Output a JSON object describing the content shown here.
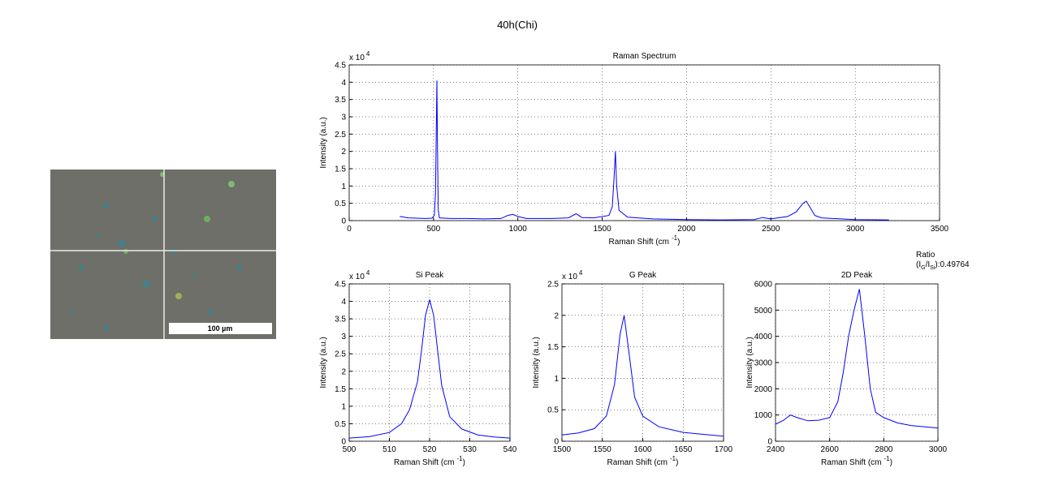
{
  "title": "40h(Chi)",
  "ratio": {
    "label": "Ratio",
    "text": [
      "(I",
      "G",
      "/I",
      "Si",
      "):0.49764"
    ]
  },
  "image": {
    "scale_label": "100 µm"
  },
  "chart_data": [
    {
      "type": "line",
      "title": "Raman Spectrum",
      "xlabel": [
        "Raman Shift (cm",
        "-1",
        ")"
      ],
      "ylabel": "Intensity (a.u.)",
      "y_multiplier": [
        "x 10",
        "4"
      ],
      "grid": true,
      "color": "#0000ff",
      "xlim": [
        0,
        3500
      ],
      "xticks": [
        0,
        500,
        1000,
        1500,
        2000,
        2500,
        3000,
        3500
      ],
      "ylim": [
        0,
        45000
      ],
      "yticks": [
        0,
        {
          "value": 5000,
          "label": "0.5"
        },
        {
          "value": 10000,
          "label": "1"
        },
        {
          "value": 15000,
          "label": "1.5"
        },
        {
          "value": 20000,
          "label": "2"
        },
        {
          "value": 25000,
          "label": "2.5"
        },
        {
          "value": 30000,
          "label": "3"
        },
        {
          "value": 35000,
          "label": "3.5"
        },
        {
          "value": 40000,
          "label": "4"
        },
        {
          "value": 45000,
          "label": "4.5"
        }
      ],
      "x": [
        300,
        350,
        400,
        450,
        490,
        505,
        512,
        516,
        520,
        524,
        528,
        535,
        600,
        700,
        800,
        900,
        940,
        970,
        1000,
        1050,
        1200,
        1300,
        1345,
        1380,
        1450,
        1540,
        1560,
        1570,
        1578,
        1586,
        1600,
        1650,
        1800,
        2000,
        2200,
        2400,
        2450,
        2500,
        2600,
        2650,
        2690,
        2710,
        2730,
        2760,
        2800,
        3000,
        3200
      ],
      "values": [
        1200,
        800,
        700,
        600,
        700,
        1500,
        8000,
        25000,
        40500,
        20000,
        3000,
        800,
        600,
        600,
        500,
        600,
        1500,
        1800,
        1200,
        600,
        600,
        800,
        2000,
        900,
        800,
        1500,
        4000,
        12000,
        20000,
        10000,
        3000,
        1000,
        500,
        300,
        200,
        300,
        900,
        500,
        1200,
        2500,
        5000,
        5600,
        4000,
        1500,
        800,
        300,
        200
      ]
    },
    {
      "type": "line",
      "title": "Si Peak",
      "xlabel": [
        "Raman Shift (cm",
        "-1",
        ")"
      ],
      "ylabel": "Intensity (a.u.)",
      "y_multiplier": [
        "x 10",
        "4"
      ],
      "grid": true,
      "color": "#0000ff",
      "xlim": [
        500,
        540
      ],
      "xticks": [
        500,
        510,
        520,
        530,
        540
      ],
      "ylim": [
        0,
        45000
      ],
      "yticks": [
        0,
        {
          "value": 5000,
          "label": "0.5"
        },
        {
          "value": 10000,
          "label": "1"
        },
        {
          "value": 15000,
          "label": "1.5"
        },
        {
          "value": 20000,
          "label": "2"
        },
        {
          "value": 25000,
          "label": "2.5"
        },
        {
          "value": 30000,
          "label": "3"
        },
        {
          "value": 35000,
          "label": "3.5"
        },
        {
          "value": 40000,
          "label": "4"
        },
        {
          "value": 45000,
          "label": "4.5"
        }
      ],
      "x": [
        500,
        505,
        510,
        513,
        515,
        517,
        518,
        519,
        520,
        521,
        522,
        523,
        525,
        528,
        532,
        536,
        540
      ],
      "values": [
        900,
        1300,
        2500,
        5000,
        9000,
        17000,
        26000,
        36000,
        40500,
        36000,
        26000,
        16000,
        7000,
        3500,
        1800,
        1200,
        900
      ]
    },
    {
      "type": "line",
      "title": "G Peak",
      "xlabel": [
        "Raman Shift (cm",
        "-1",
        ")"
      ],
      "ylabel": "Intensity (a.u.)",
      "y_multiplier": [
        "x 10",
        "4"
      ],
      "grid": true,
      "color": "#0000ff",
      "xlim": [
        1500,
        1700
      ],
      "xticks": [
        1500,
        1550,
        1600,
        1650,
        1700
      ],
      "ylim": [
        0,
        25000
      ],
      "yticks": [
        0,
        {
          "value": 5000,
          "label": "0.5"
        },
        {
          "value": 10000,
          "label": "1"
        },
        {
          "value": 15000,
          "label": "1.5"
        },
        {
          "value": 20000,
          "label": "2"
        },
        {
          "value": 25000,
          "label": "2.5"
        }
      ],
      "x": [
        1500,
        1520,
        1540,
        1555,
        1565,
        1572,
        1577,
        1582,
        1590,
        1600,
        1620,
        1650,
        1700
      ],
      "values": [
        1000,
        1300,
        2000,
        4000,
        9000,
        17000,
        20000,
        15000,
        7000,
        4000,
        2300,
        1400,
        800
      ]
    },
    {
      "type": "line",
      "title": "2D Peak",
      "xlabel": [
        "Raman Shift (cm",
        "-1",
        ")"
      ],
      "ylabel": "Intensity (a.u.)",
      "grid": true,
      "color": "#0000ff",
      "xlim": [
        2400,
        3000
      ],
      "xticks": [
        2400,
        2600,
        2800,
        3000
      ],
      "ylim": [
        0,
        6000
      ],
      "yticks": [
        0,
        1000,
        2000,
        3000,
        4000,
        5000,
        6000
      ],
      "x": [
        2400,
        2430,
        2455,
        2480,
        2520,
        2560,
        2600,
        2630,
        2650,
        2670,
        2690,
        2710,
        2730,
        2750,
        2770,
        2800,
        2850,
        2900,
        3000
      ],
      "values": [
        650,
        800,
        1000,
        900,
        780,
        800,
        900,
        1500,
        2600,
        4000,
        5000,
        5800,
        4000,
        2000,
        1100,
        900,
        700,
        600,
        500
      ]
    }
  ]
}
